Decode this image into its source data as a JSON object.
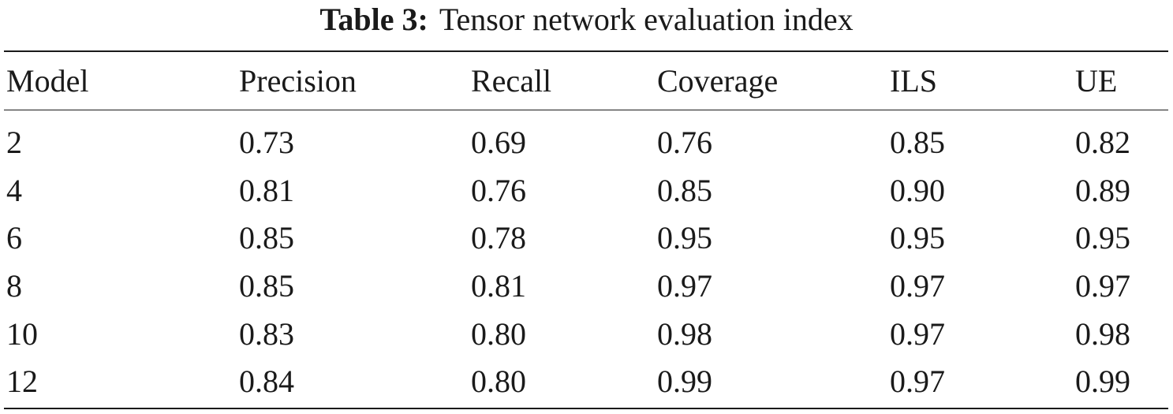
{
  "caption": {
    "label": "Table 3:",
    "text": "Tensor network evaluation index"
  },
  "table": {
    "headers": [
      "Model",
      "Precision",
      "Recall",
      "Coverage",
      "ILS",
      "UE"
    ],
    "rows": [
      [
        "2",
        "0.73",
        "0.69",
        "0.76",
        "0.85",
        "0.82"
      ],
      [
        "4",
        "0.81",
        "0.76",
        "0.85",
        "0.90",
        "0.89"
      ],
      [
        "6",
        "0.85",
        "0.78",
        "0.95",
        "0.95",
        "0.95"
      ],
      [
        "8",
        "0.85",
        "0.81",
        "0.97",
        "0.97",
        "0.97"
      ],
      [
        "10",
        "0.83",
        "0.80",
        "0.98",
        "0.97",
        "0.98"
      ],
      [
        "12",
        "0.84",
        "0.80",
        "0.99",
        "0.97",
        "0.99"
      ]
    ]
  }
}
